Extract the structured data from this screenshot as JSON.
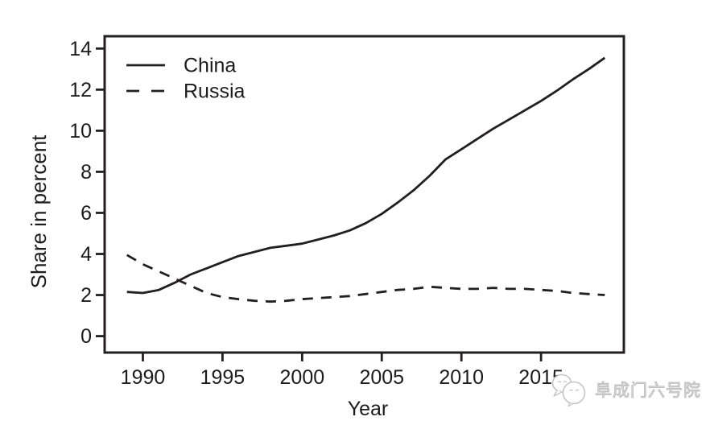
{
  "page": {
    "background": "#ffffff",
    "ink_color": "#231f20",
    "label_color": "#1c1c1c"
  },
  "chart_data": {
    "type": "line",
    "title": "",
    "xlabel": "Year",
    "ylabel": "Share in percent",
    "x": [
      1989,
      1990,
      1991,
      1992,
      1993,
      1994,
      1995,
      1996,
      1997,
      1998,
      1999,
      2000,
      2001,
      2002,
      2003,
      2004,
      2005,
      2006,
      2007,
      2008,
      2009,
      2010,
      2011,
      2012,
      2013,
      2014,
      2015,
      2016,
      2017,
      2018,
      2019
    ],
    "series": [
      {
        "name": "China",
        "line_style": "solid",
        "color": "#231f20",
        "values": [
          2.15,
          2.1,
          2.25,
          2.6,
          3.0,
          3.3,
          3.6,
          3.9,
          4.1,
          4.3,
          4.4,
          4.5,
          4.7,
          4.9,
          5.15,
          5.5,
          5.95,
          6.5,
          7.1,
          7.8,
          8.6,
          9.1,
          9.6,
          10.1,
          10.55,
          11.0,
          11.45,
          11.95,
          12.5,
          13.0,
          13.55
        ]
      },
      {
        "name": "Russia",
        "line_style": "dashed",
        "color": "#231f20",
        "values": [
          3.95,
          3.5,
          3.15,
          2.8,
          2.45,
          2.1,
          1.9,
          1.8,
          1.72,
          1.68,
          1.72,
          1.8,
          1.85,
          1.9,
          1.95,
          2.05,
          2.15,
          2.25,
          2.3,
          2.4,
          2.35,
          2.3,
          2.3,
          2.35,
          2.3,
          2.3,
          2.25,
          2.2,
          2.1,
          2.05,
          2.0
        ]
      }
    ],
    "xlim": [
      1987.6,
      2020.2
    ],
    "ylim": [
      -0.8,
      14.6
    ],
    "xticks": [
      1990,
      1995,
      2000,
      2005,
      2010,
      2015
    ],
    "yticks": [
      0,
      2,
      4,
      6,
      8,
      10,
      12,
      14
    ],
    "grid": false,
    "legend": {
      "position": "top-left-inside",
      "entries": [
        "China",
        "Russia"
      ]
    }
  },
  "watermark": {
    "text": "阜成门六号院",
    "logo": "overlapping-chat-bubbles",
    "color": "#c6c6c6"
  }
}
